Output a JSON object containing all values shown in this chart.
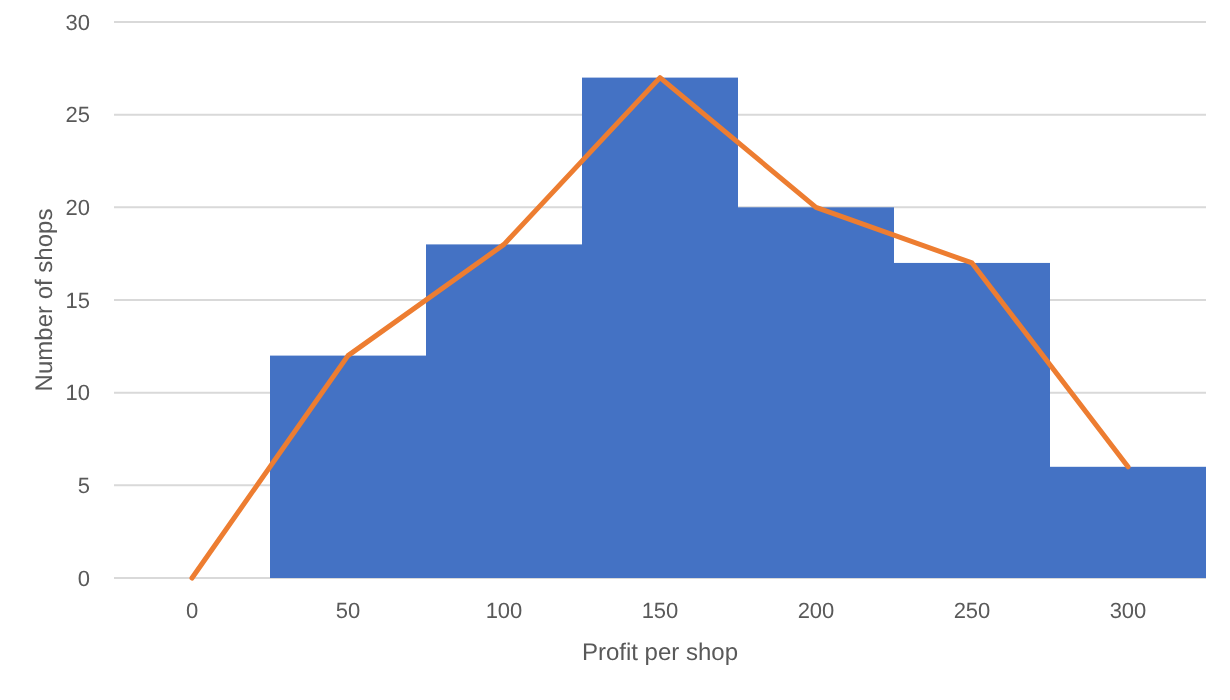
{
  "chart_data": {
    "type": "histogram",
    "xlabel": "Profit per shop",
    "ylabel": "Number of shops",
    "bins": [
      25,
      75,
      125,
      175,
      225,
      275,
      325
    ],
    "xlim": [
      -25,
      325
    ],
    "xticks": [
      0,
      50,
      100,
      150,
      200,
      250,
      300
    ],
    "ylim": [
      0,
      30
    ],
    "yticks": [
      0,
      5,
      10,
      15,
      20,
      25,
      30
    ],
    "grid": "y",
    "series": [
      {
        "color": "#4472c4",
        "values": [
          12,
          18,
          27,
          20,
          17,
          6
        ]
      },
      {
        "type": "line",
        "color": "#ed7d31",
        "x": [
          0,
          50,
          100,
          150,
          200,
          250,
          300
        ],
        "values": [
          0,
          12,
          18,
          27,
          20,
          17,
          6
        ]
      }
    ]
  }
}
